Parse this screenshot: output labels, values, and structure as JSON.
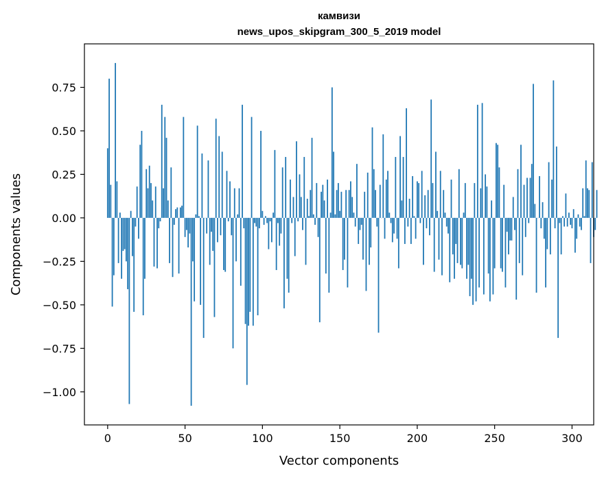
{
  "chart_data": {
    "type": "bar",
    "title": "камвизи",
    "subtitle": "news_upos_skipgram_300_5_2019 model",
    "xlabel": "Vector components",
    "ylabel": "Components values",
    "xlim": [
      -15,
      314
    ],
    "ylim": [
      -1.19,
      1.0
    ],
    "xticks": [
      0,
      50,
      100,
      150,
      200,
      250,
      300
    ],
    "yticks": [
      0.75,
      0.5,
      0.25,
      0.0,
      -0.25,
      -0.5,
      -0.75,
      -1.0
    ],
    "ytick_labels": [
      "0.75",
      "0.50",
      "0.25",
      "0.00",
      "−0.25",
      "−0.50",
      "−0.75",
      "−1.00"
    ],
    "grid": false,
    "legend": false,
    "bar_color": "#1f77b4",
    "values": [
      0.4,
      0.8,
      0.19,
      -0.51,
      -0.33,
      0.89,
      0.21,
      -0.26,
      0.03,
      -0.35,
      -0.19,
      -0.18,
      -0.25,
      -0.41,
      -1.07,
      0.04,
      -0.22,
      -0.54,
      -0.05,
      0.18,
      -0.12,
      0.42,
      0.5,
      -0.56,
      -0.35,
      0.28,
      0.17,
      0.3,
      0.2,
      0.1,
      -0.28,
      0.18,
      -0.29,
      -0.06,
      -0.02,
      0.65,
      0.17,
      0.58,
      0.46,
      0.1,
      -0.26,
      0.29,
      -0.34,
      -0.04,
      0.05,
      0.06,
      -0.32,
      0.06,
      0.07,
      0.58,
      -0.11,
      -0.07,
      -0.17,
      -0.09,
      -1.08,
      -0.25,
      -0.48,
      0.02,
      0.53,
      0.01,
      -0.5,
      0.37,
      -0.69,
      0.0,
      -0.09,
      0.33,
      -0.27,
      -0.08,
      -0.19,
      -0.57,
      0.57,
      -0.14,
      0.47,
      -0.1,
      0.38,
      -0.3,
      -0.31,
      0.27,
      -0.02,
      0.21,
      -0.1,
      -0.75,
      0.17,
      -0.25,
      0.02,
      0.17,
      -0.39,
      0.65,
      -0.06,
      -0.61,
      -0.96,
      -0.62,
      -0.54,
      0.58,
      -0.62,
      -0.03,
      -0.05,
      -0.56,
      -0.06,
      0.5,
      0.04,
      -0.04,
      0.01,
      -0.03,
      -0.18,
      -0.02,
      -0.14,
      0.03,
      0.39,
      -0.3,
      -0.03,
      -0.16,
      -0.09,
      0.29,
      -0.52,
      0.35,
      -0.35,
      -0.43,
      0.22,
      -0.03,
      0.12,
      -0.22,
      0.44,
      -0.02,
      0.25,
      0.12,
      -0.07,
      0.35,
      -0.27,
      0.11,
      0.01,
      0.16,
      0.46,
      0.02,
      -0.04,
      0.2,
      -0.11,
      -0.6,
      0.15,
      0.19,
      0.1,
      -0.32,
      0.22,
      -0.43,
      0.03,
      0.75,
      0.38,
      0.02,
      0.16,
      0.2,
      0.04,
      0.15,
      -0.3,
      -0.24,
      0.16,
      -0.4,
      0.16,
      0.21,
      0.12,
      0.03,
      -0.05,
      0.31,
      -0.15,
      -0.07,
      -0.04,
      -0.24,
      0.15,
      -0.42,
      0.26,
      -0.27,
      -0.17,
      0.52,
      0.28,
      0.16,
      -0.05,
      -0.66,
      0.19,
      0.0,
      0.48,
      -0.12,
      0.22,
      0.27,
      0.03,
      -0.03,
      -0.14,
      -0.09,
      0.35,
      -0.12,
      -0.29,
      0.47,
      0.1,
      0.35,
      -0.15,
      0.63,
      -0.05,
      0.11,
      -0.15,
      0.24,
      0.01,
      -0.12,
      0.21,
      0.2,
      -0.03,
      0.27,
      -0.27,
      0.13,
      -0.06,
      0.16,
      -0.1,
      0.68,
      0.2,
      -0.31,
      0.38,
      0.04,
      -0.24,
      0.27,
      -0.33,
      0.16,
      0.03,
      -0.05,
      -0.09,
      -0.37,
      0.22,
      -0.21,
      -0.35,
      -0.15,
      -0.26,
      0.28,
      -0.27,
      -0.29,
      0.03,
      0.2,
      -0.35,
      -0.27,
      -0.45,
      -0.35,
      -0.5,
      0.2,
      -0.48,
      0.65,
      -0.4,
      0.17,
      0.66,
      -0.44,
      0.25,
      0.18,
      -0.32,
      -0.48,
      0.1,
      -0.44,
      -0.29,
      0.43,
      0.42,
      0.29,
      -0.29,
      -0.31,
      0.19,
      -0.4,
      -0.08,
      -0.21,
      -0.13,
      -0.13,
      0.12,
      -0.07,
      -0.47,
      0.28,
      -0.26,
      0.42,
      -0.33,
      0.19,
      -0.11,
      0.23,
      -0.03,
      0.23,
      0.31,
      0.77,
      0.08,
      -0.43,
      0.0,
      0.24,
      -0.06,
      0.09,
      -0.12,
      -0.4,
      -0.18,
      0.32,
      -0.21,
      0.22,
      0.79,
      -0.06,
      0.41,
      -0.69,
      -0.03,
      -0.21,
      0.01,
      -0.05,
      0.14,
      -0.05,
      0.03,
      -0.04,
      -0.06,
      0.05,
      -0.2,
      -0.12,
      0.02,
      -0.05,
      -0.07,
      0.17,
      0.01,
      0.33,
      0.17,
      0.16,
      -0.26,
      0.32,
      -0.11,
      -0.07,
      0.16
    ]
  }
}
